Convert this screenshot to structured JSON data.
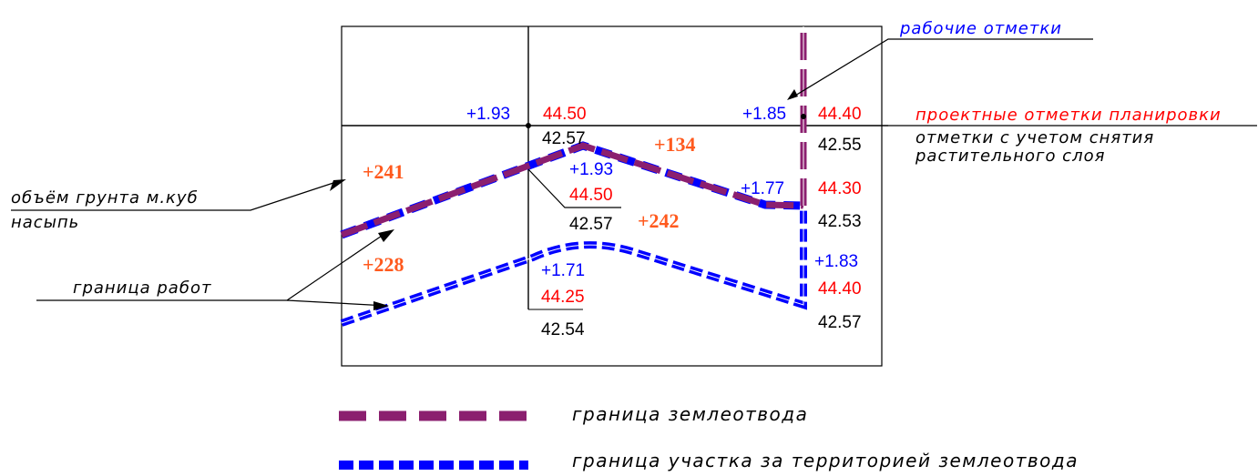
{
  "colors": {
    "blue": "#0000ff",
    "red": "#ff0000",
    "black": "#000000",
    "orange": "#ff5a1e",
    "purple": "#8b1f6f"
  },
  "annotations": {
    "work_marks": "рабочие отметки",
    "design_marks": "проектные отметки планировки",
    "natural_marks_line1": "отметки с учетом снятия",
    "natural_marks_line2": "растительного слоя",
    "volume_line1": "объём грунта м.куб",
    "volume_line2": "насыпь",
    "work_boundary": "граница работ"
  },
  "points": {
    "p1": {
      "work": "+1.93",
      "design": "44.50",
      "natural": "42.57"
    },
    "p2": {
      "work": "+1.85",
      "design": "44.40",
      "natural": "42.55"
    },
    "p3": {
      "work": "+1.93",
      "design": "44.50",
      "natural": "42.57"
    },
    "p4": {
      "work": "+1.77",
      "design": "44.30",
      "natural": "42.53"
    },
    "p5": {
      "work": "+1.71",
      "design": "44.25",
      "natural": "42.54"
    },
    "p6": {
      "work": "+1.83",
      "design": "44.40",
      "natural": "42.57"
    }
  },
  "volumes": {
    "v1": "+241",
    "v2": "+134",
    "v3": "+242",
    "v4": "+228"
  },
  "legend": {
    "land_allotment": "граница землеотвода",
    "outside_area": "граница участка за территорией землеотвода"
  }
}
